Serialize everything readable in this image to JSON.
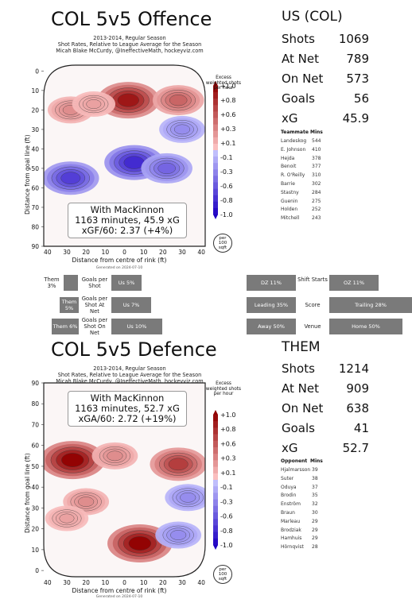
{
  "offence": {
    "title": "COL 5v5 Offence",
    "subtitle": [
      "2013-2014, Regular Season",
      "Shot Rates, Relative to League Average for the Season",
      "Micah Blake McCurdy, @IneffectiveMath, hockeyviz.com"
    ],
    "annotation": [
      "With MacKinnon",
      "1163 minutes, 45.9 xG",
      "xGF/60: 2.37 (+4%)"
    ],
    "generated": "Generated on 2024-07-10",
    "ylabel": "Distance from goal line (ft)",
    "xlabel": "Distance from centre of rink (ft)",
    "xticks": [
      "40",
      "30",
      "20",
      "10",
      "0",
      "10",
      "20",
      "30",
      "40"
    ],
    "yticks": [
      "0",
      "10",
      "20",
      "30",
      "40",
      "50",
      "60",
      "70",
      "80",
      "90"
    ],
    "colorbar_title": [
      "Excess",
      "weighted shots",
      "per hour"
    ],
    "colorbar_ticks": [
      "+1.0",
      "+0.8",
      "+0.6",
      "+0.3",
      "+0.1",
      "-0.1",
      "-0.3",
      "-0.6",
      "-0.8",
      "-1.0"
    ],
    "rate_badge": [
      "per",
      "100",
      "sqft"
    ],
    "stats_header": "US (COL)",
    "stats": [
      {
        "label": "Shots",
        "value": "1069"
      },
      {
        "label": "At Net",
        "value": "789"
      },
      {
        "label": "On Net",
        "value": "573"
      },
      {
        "label": "Goals",
        "value": "56"
      },
      {
        "label": "xG",
        "value": "45.9"
      }
    ],
    "mates_header": "Teammate",
    "mates_mins_header": "Mins",
    "mates": [
      {
        "name": "Landeskog",
        "mins": "544"
      },
      {
        "name": "E. Johnson",
        "mins": "410"
      },
      {
        "name": "Hejda",
        "mins": "378"
      },
      {
        "name": "Benoit",
        "mins": "377"
      },
      {
        "name": "R. O'Reilly",
        "mins": "310"
      },
      {
        "name": "Barrie",
        "mins": "302"
      },
      {
        "name": "Stastny",
        "mins": "284"
      },
      {
        "name": "Guenin",
        "mins": "275"
      },
      {
        "name": "Holden",
        "mins": "252"
      },
      {
        "name": "Mitchell",
        "mins": "243"
      }
    ]
  },
  "defence": {
    "title": "COL 5v5 Defence",
    "subtitle": [
      "2013-2014, Regular Season",
      "Shot Rates, Relative to League Average for the Season",
      "Micah Blake McCurdy, @IneffectiveMath, hockeyviz.com"
    ],
    "annotation": [
      "With MacKinnon",
      "1163 minutes, 52.7 xG",
      "xGA/60: 2.72 (+19%)"
    ],
    "generated": "Generated on 2024-07-10",
    "ylabel": "Distance from goal line (ft)",
    "xlabel": "Distance from centre of rink (ft)",
    "xticks": [
      "40",
      "30",
      "20",
      "10",
      "0",
      "10",
      "20",
      "30",
      "40"
    ],
    "yticks": [
      "90",
      "80",
      "70",
      "60",
      "50",
      "40",
      "30",
      "20",
      "10",
      "0"
    ],
    "colorbar_title": [
      "Excess",
      "weighted shots",
      "per hour"
    ],
    "colorbar_ticks": [
      "+1.0",
      "+0.8",
      "+0.6",
      "+0.3",
      "+0.1",
      "-0.1",
      "-0.3",
      "-0.6",
      "-0.8",
      "-1.0"
    ],
    "rate_badge": [
      "per",
      "100",
      "sqft"
    ],
    "stats_header": "THEM",
    "stats": [
      {
        "label": "Shots",
        "value": "1214"
      },
      {
        "label": "At Net",
        "value": "909"
      },
      {
        "label": "On Net",
        "value": "638"
      },
      {
        "label": "Goals",
        "value": "41"
      },
      {
        "label": "xG",
        "value": "52.7"
      }
    ],
    "mates_header": "Opponent",
    "mates_mins_header": "Mins",
    "mates": [
      {
        "name": "Hjalmarsson",
        "mins": "39"
      },
      {
        "name": "Suter",
        "mins": "38"
      },
      {
        "name": "Oduya",
        "mins": "37"
      },
      {
        "name": "Brodin",
        "mins": "35"
      },
      {
        "name": "Enström",
        "mins": "32"
      },
      {
        "name": "Braun",
        "mins": "30"
      },
      {
        "name": "Marleau",
        "mins": "29"
      },
      {
        "name": "Brodziak",
        "mins": "29"
      },
      {
        "name": "Hamhuis",
        "mins": "29"
      },
      {
        "name": "Hörnqvist",
        "mins": "28"
      }
    ]
  },
  "comparison": {
    "goals_per_shot": {
      "label": "Goals per Shot",
      "them": "Them 3%",
      "us": "Us 5%",
      "them_frac": 0.03,
      "us_frac": 0.05
    },
    "goals_per_shot_at_net": {
      "label": "Goals per Shot At Net",
      "them": "Them 5%",
      "us": "Us 7%",
      "them_frac": 0.05,
      "us_frac": 0.07
    },
    "goals_per_shot_on_net": {
      "label": "Goals per Shot On Net",
      "them": "Them 6%",
      "us": "Us 10%",
      "them_frac": 0.06,
      "us_frac": 0.1
    },
    "shift_starts": {
      "label": "Shift Starts",
      "left": "DZ 11%",
      "right": "OZ 11%",
      "left_frac": 0.11,
      "right_frac": 0.11
    },
    "score": {
      "label": "Score",
      "left": "Leading 35%",
      "right": "Trailing 28%",
      "left_frac": 0.35,
      "right_frac": 0.28
    },
    "venue": {
      "label": "Venue",
      "left": "Away 50%",
      "right": "Home 50%",
      "left_frac": 0.5,
      "right_frac": 0.5
    }
  },
  "chart_data": [
    {
      "type": "heatmap",
      "title": "COL 5v5 Offence",
      "subtitle": "2013-2014, Regular Season; Shot Rates, Relative to League Average for the Season",
      "xlabel": "Distance from centre of rink (ft)",
      "ylabel": "Distance from goal line (ft)",
      "xlim": [
        -42,
        42
      ],
      "ylim": [
        -3,
        90
      ],
      "colorbar_range": [
        -1.0,
        1.0
      ],
      "colorbar_label": "Excess weighted shots per hour",
      "hotspots": [
        {
          "x": 2,
          "y": 15,
          "value": 0.9
        },
        {
          "x": 28,
          "y": 15,
          "value": 0.5
        },
        {
          "x": -28,
          "y": 20,
          "value": 0.3
        },
        {
          "x": -16,
          "y": 17,
          "value": 0.2
        },
        {
          "x": 5,
          "y": 47,
          "value": -0.8
        },
        {
          "x": -28,
          "y": 55,
          "value": -0.7
        },
        {
          "x": 22,
          "y": 50,
          "value": -0.5
        },
        {
          "x": 30,
          "y": 30,
          "value": -0.3
        }
      ]
    },
    {
      "type": "heatmap",
      "title": "COL 5v5 Defence",
      "subtitle": "2013-2014, Regular Season; Shot Rates, Relative to League Average for the Season",
      "xlabel": "Distance from centre of rink (ft)",
      "ylabel": "Distance from goal line (ft)",
      "xlim": [
        -42,
        42
      ],
      "ylim": [
        -3,
        90
      ],
      "colorbar_range": [
        -1.0,
        1.0
      ],
      "colorbar_label": "Excess weighted shots per hour",
      "hotspots": [
        {
          "x": -27,
          "y": 53,
          "value": 1.0
        },
        {
          "x": 28,
          "y": 51,
          "value": 0.7
        },
        {
          "x": 8,
          "y": 13,
          "value": 1.0
        },
        {
          "x": -5,
          "y": 55,
          "value": 0.3
        },
        {
          "x": -20,
          "y": 33,
          "value": 0.3
        },
        {
          "x": 28,
          "y": 17,
          "value": -0.3
        },
        {
          "x": 33,
          "y": 35,
          "value": -0.3
        },
        {
          "x": -30,
          "y": 25,
          "value": 0.2
        }
      ]
    }
  ]
}
